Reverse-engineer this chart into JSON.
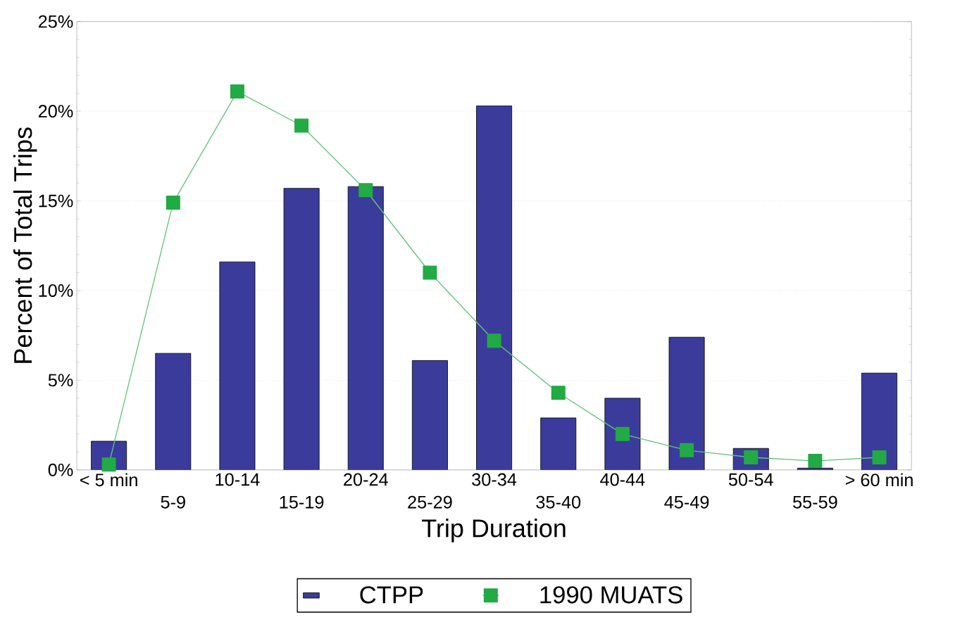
{
  "chart_data": {
    "type": "bar",
    "xlabel": "Trip Duration",
    "ylabel": "Percent of Total Trips",
    "categories": [
      "< 5 min",
      "5-9",
      "10-14",
      "15-19",
      "20-24",
      "25-29",
      "30-34",
      "35-40",
      "40-44",
      "45-49",
      "50-54",
      "55-59",
      "> 60 min"
    ],
    "series": [
      {
        "name": "CTPP",
        "color": "#3b3b9c",
        "values": [
          1.6,
          6.5,
          11.6,
          15.7,
          15.8,
          6.1,
          20.3,
          2.9,
          4.0,
          7.4,
          1.2,
          0.1,
          5.4
        ]
      },
      {
        "name": "1990 MUATS",
        "type": "line",
        "color": "#22aa44",
        "marker": "square",
        "values": [
          0.3,
          14.9,
          21.1,
          19.2,
          15.6,
          11.0,
          7.2,
          4.3,
          2.0,
          1.1,
          0.7,
          0.5,
          0.7
        ]
      }
    ],
    "ylim": [
      0,
      25
    ],
    "yticks": [
      {
        "value": 0,
        "label": "0%"
      },
      {
        "value": 5,
        "label": "5%"
      },
      {
        "value": 10,
        "label": "10%"
      },
      {
        "value": 15,
        "label": "15%"
      },
      {
        "value": 20,
        "label": "20%"
      },
      {
        "value": 25,
        "label": "25%"
      }
    ],
    "grid": "y",
    "legend": "bottom"
  }
}
